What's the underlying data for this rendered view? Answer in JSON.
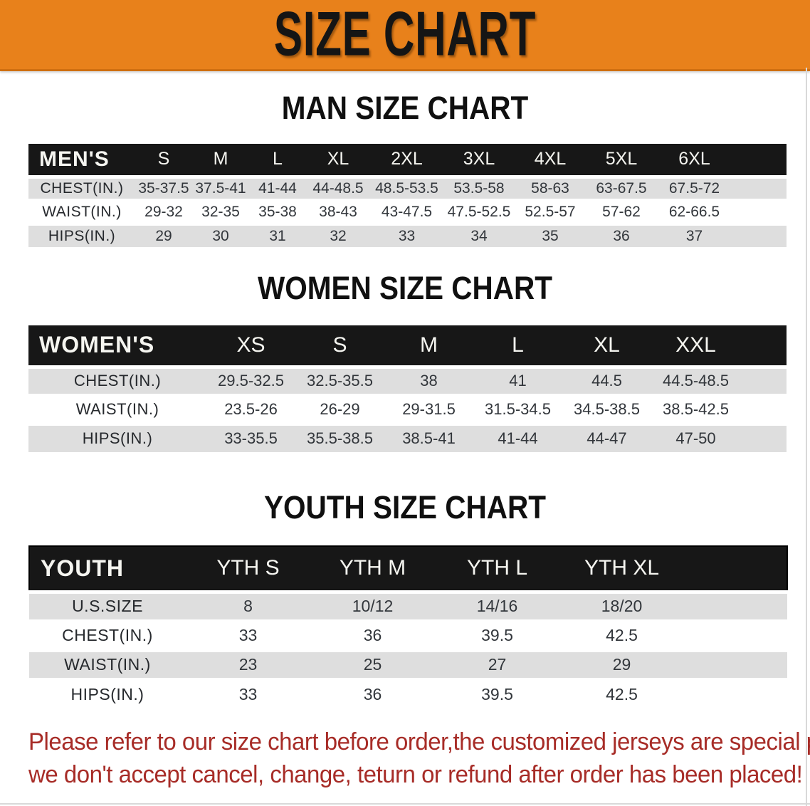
{
  "banner": {
    "title": "SIZE CHART"
  },
  "colors": {
    "banner_bg": "#e8811b",
    "header_bar": "#171717",
    "row_gray": "#dedede",
    "disclaimer_red": "#a72c27"
  },
  "sections": [
    {
      "heading": "MAN SIZE CHART",
      "table": {
        "header": [
          "MEN'S",
          "S",
          "M",
          "L",
          "XL",
          "2XL",
          "3XL",
          "4XL",
          "5XL",
          "6XL"
        ],
        "rows": [
          {
            "label": "CHEST(IN.)",
            "values": [
              "35-37.5",
              "37.5-41",
              "41-44",
              "44-48.5",
              "48.5-53.5",
              "53.5-58",
              "58-63",
              "63-67.5",
              "67.5-72"
            ]
          },
          {
            "label": "WAIST(IN.)",
            "values": [
              "29-32",
              "32-35",
              "35-38",
              "38-43",
              "43-47.5",
              "47.5-52.5",
              "52.5-57",
              "57-62",
              "62-66.5"
            ]
          },
          {
            "label": "HIPS(IN.)",
            "values": [
              "29",
              "30",
              "31",
              "32",
              "33",
              "34",
              "35",
              "36",
              "37"
            ]
          }
        ]
      }
    },
    {
      "heading": "WOMEN SIZE CHART",
      "table": {
        "header": [
          "WOMEN'S",
          "XS",
          "S",
          "M",
          "L",
          "XL",
          "XXL"
        ],
        "rows": [
          {
            "label": "CHEST(IN.)",
            "values": [
              "29.5-32.5",
              "32.5-35.5",
              "38",
              "41",
              "44.5",
              "44.5-48.5"
            ]
          },
          {
            "label": "WAIST(IN.)",
            "values": [
              "23.5-26",
              "26-29",
              "29-31.5",
              "31.5-34.5",
              "34.5-38.5",
              "38.5-42.5"
            ]
          },
          {
            "label": "HIPS(IN.)",
            "values": [
              "33-35.5",
              "35.5-38.5",
              "38.5-41",
              "41-44",
              "44-47",
              "47-50"
            ]
          }
        ]
      }
    },
    {
      "heading": "YOUTH SIZE CHART",
      "table": {
        "header": [
          "YOUTH",
          "YTH S",
          "YTH M",
          "YTH L",
          "YTH XL"
        ],
        "rows": [
          {
            "label": "U.S.SIZE",
            "values": [
              "8",
              "10/12",
              "14/16",
              "18/20"
            ]
          },
          {
            "label": "CHEST(IN.)",
            "values": [
              "33",
              "36",
              "39.5",
              "42.5"
            ]
          },
          {
            "label": "WAIST(IN.)",
            "values": [
              "23",
              "25",
              "27",
              "29"
            ]
          },
          {
            "label": "HIPS(IN.)",
            "values": [
              "33",
              "36",
              "39.5",
              "42.5"
            ]
          }
        ]
      }
    }
  ],
  "disclaimer": {
    "line1": "Please refer to our size chart before order,the customized jerseys are special products,",
    "line2": "we don't accept cancel, change, teturn or refund after order has been placed!"
  }
}
